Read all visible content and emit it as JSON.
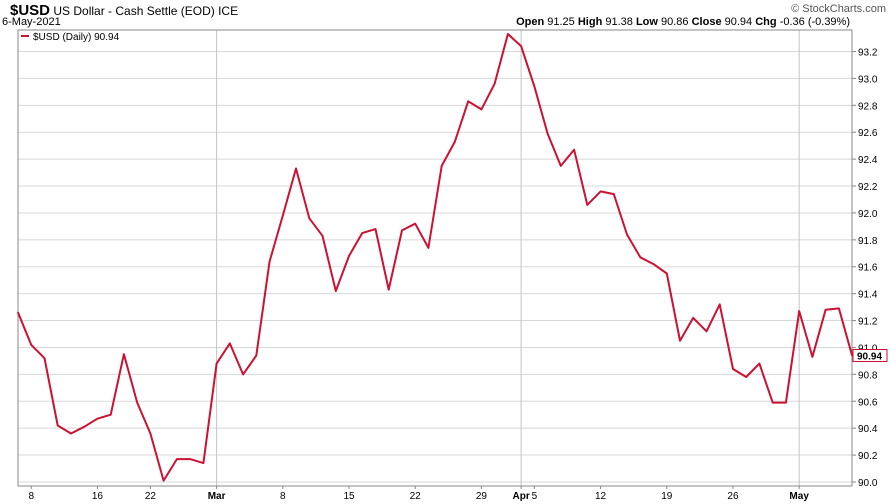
{
  "header": {
    "symbol": "$USD",
    "description": "US Dollar - Cash Settle (EOD)",
    "exchange": "ICE",
    "date": "6-May-2021",
    "copyright": "© StockCharts.com",
    "open_label": "Open",
    "open": "91.25",
    "high_label": "High",
    "high": "91.38",
    "low_label": "Low",
    "low": "90.86",
    "close_label": "Close",
    "close": "90.94",
    "chg_label": "Chg",
    "chg": "-0.36 (-0.39%)"
  },
  "legend": {
    "label": "$USD (Daily) 90.94"
  },
  "last_value_label": "90.94",
  "colors": {
    "line": "#cc1133",
    "grid": "#d8d8d8",
    "axis": "#888888"
  },
  "chart_data": {
    "type": "line",
    "title": "$USD US Dollar - Cash Settle (EOD) ICE",
    "series": [
      {
        "name": "$USD (Daily)",
        "values": [
          91.26,
          91.02,
          90.92,
          90.42,
          90.36,
          90.41,
          90.47,
          90.5,
          90.95,
          90.59,
          90.36,
          90.01,
          90.17,
          90.17,
          90.14,
          90.88,
          91.03,
          90.8,
          90.94,
          91.64,
          91.98,
          92.33,
          91.96,
          91.83,
          91.42,
          91.68,
          91.85,
          91.88,
          91.43,
          91.87,
          91.92,
          91.74,
          92.35,
          92.53,
          92.83,
          92.77,
          92.96,
          93.33,
          93.24,
          92.94,
          92.59,
          92.35,
          92.47,
          92.06,
          92.16,
          92.14,
          91.84,
          91.67,
          91.62,
          91.55,
          91.05,
          91.22,
          91.12,
          91.32,
          90.84,
          90.78,
          90.88,
          90.59,
          90.59,
          91.27,
          90.93,
          91.28,
          91.29,
          90.94
        ]
      }
    ],
    "ylim": [
      89.97,
      93.36
    ],
    "y_ticks": [
      "90.0",
      "90.2",
      "90.4",
      "90.6",
      "90.8",
      "91.0",
      "91.2",
      "91.4",
      "91.6",
      "91.8",
      "92.0",
      "92.2",
      "92.4",
      "92.6",
      "92.8",
      "93.0",
      "93.2"
    ],
    "x_ticks": [
      {
        "label": "8",
        "index": 1,
        "bold": false
      },
      {
        "label": "16",
        "index": 6,
        "bold": false
      },
      {
        "label": "22",
        "index": 10,
        "bold": false
      },
      {
        "label": "Mar",
        "index": 15,
        "bold": true
      },
      {
        "label": "8",
        "index": 20,
        "bold": false
      },
      {
        "label": "15",
        "index": 25,
        "bold": false
      },
      {
        "label": "22",
        "index": 30,
        "bold": false
      },
      {
        "label": "29",
        "index": 35,
        "bold": false
      },
      {
        "label": "Apr",
        "index": 38,
        "bold": true
      },
      {
        "label": "5",
        "index": 39,
        "bold": false
      },
      {
        "label": "12",
        "index": 44,
        "bold": false
      },
      {
        "label": "19",
        "index": 49,
        "bold": false
      },
      {
        "label": "26",
        "index": 54,
        "bold": false
      },
      {
        "label": "May",
        "index": 59,
        "bold": true
      }
    ],
    "grid": true,
    "legend_position": "top-left"
  }
}
